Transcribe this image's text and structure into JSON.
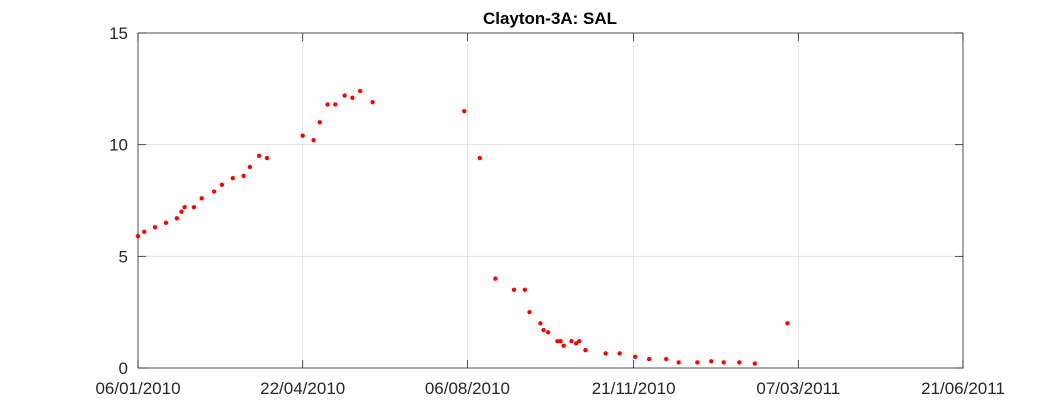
{
  "chart_data": {
    "type": "scatter",
    "title": "Clayton-3A: SAL",
    "xlabel": "",
    "ylabel": "",
    "x_type": "date",
    "xlim": [
      "2010-01-06",
      "2011-06-21"
    ],
    "ylim": [
      0,
      15
    ],
    "xticks": [
      "2010-01-06",
      "2010-04-22",
      "2010-08-06",
      "2010-11-21",
      "2011-03-07",
      "2011-06-21"
    ],
    "xtick_labels": [
      "06/01/2010",
      "22/04/2010",
      "06/08/2010",
      "21/11/2010",
      "07/03/2011",
      "21/06/2011"
    ],
    "yticks": [
      0,
      5,
      10,
      15
    ],
    "ytick_labels": [
      "0",
      "5",
      "10",
      "15"
    ],
    "grid": true,
    "marker_color": "#ff0000",
    "series": [
      {
        "points": [
          [
            "2010-01-06",
            5.9
          ],
          [
            "2010-01-10",
            6.1
          ],
          [
            "2010-01-17",
            6.3
          ],
          [
            "2010-01-24",
            6.5
          ],
          [
            "2010-01-31",
            6.7
          ],
          [
            "2010-02-03",
            7.0
          ],
          [
            "2010-02-05",
            7.2
          ],
          [
            "2010-02-11",
            7.2
          ],
          [
            "2010-02-16",
            7.6
          ],
          [
            "2010-02-24",
            7.9
          ],
          [
            "2010-03-01",
            8.2
          ],
          [
            "2010-03-08",
            8.5
          ],
          [
            "2010-03-15",
            8.6
          ],
          [
            "2010-03-19",
            9.0
          ],
          [
            "2010-03-25",
            9.5
          ],
          [
            "2010-03-30",
            9.4
          ],
          [
            "2010-04-22",
            10.4
          ],
          [
            "2010-04-29",
            10.2
          ],
          [
            "2010-05-03",
            11.0
          ],
          [
            "2010-05-08",
            11.8
          ],
          [
            "2010-05-13",
            11.8
          ],
          [
            "2010-05-19",
            12.2
          ],
          [
            "2010-05-24",
            12.1
          ],
          [
            "2010-05-29",
            12.4
          ],
          [
            "2010-06-06",
            11.9
          ],
          [
            "2010-08-04",
            11.5
          ],
          [
            "2010-08-14",
            9.4
          ],
          [
            "2010-08-24",
            4.0
          ],
          [
            "2010-09-05",
            3.5
          ],
          [
            "2010-09-12",
            3.5
          ],
          [
            "2010-09-15",
            2.5
          ],
          [
            "2010-09-22",
            2.0
          ],
          [
            "2010-09-24",
            1.7
          ],
          [
            "2010-09-27",
            1.6
          ],
          [
            "2010-10-03",
            1.2
          ],
          [
            "2010-10-05",
            1.2
          ],
          [
            "2010-10-07",
            1.0
          ],
          [
            "2010-10-12",
            1.2
          ],
          [
            "2010-10-15",
            1.1
          ],
          [
            "2010-10-17",
            1.2
          ],
          [
            "2010-10-21",
            0.8
          ],
          [
            "2010-11-03",
            0.65
          ],
          [
            "2010-11-12",
            0.65
          ],
          [
            "2010-11-22",
            0.5
          ],
          [
            "2010-12-01",
            0.4
          ],
          [
            "2010-12-12",
            0.4
          ],
          [
            "2010-12-20",
            0.25
          ],
          [
            "2011-01-01",
            0.25
          ],
          [
            "2011-01-10",
            0.3
          ],
          [
            "2011-01-18",
            0.25
          ],
          [
            "2011-01-28",
            0.25
          ],
          [
            "2011-02-07",
            0.2
          ],
          [
            "2011-02-28",
            2.0
          ]
        ]
      }
    ]
  }
}
